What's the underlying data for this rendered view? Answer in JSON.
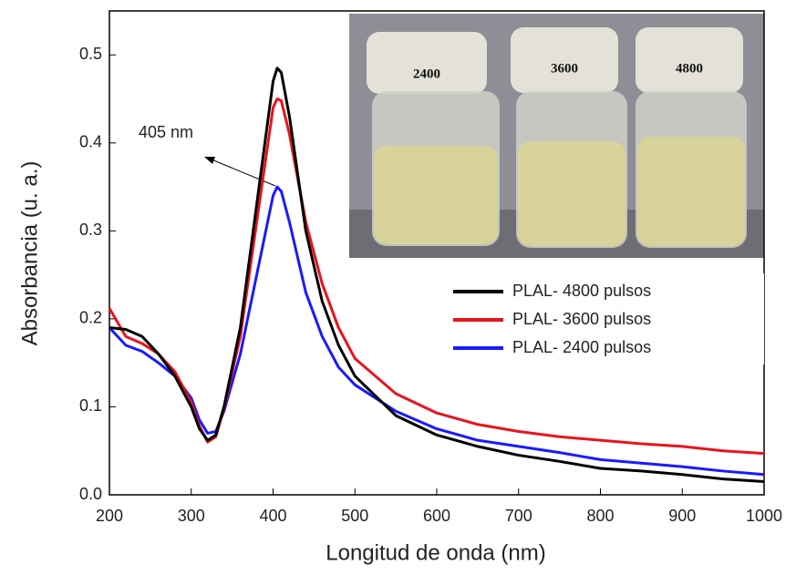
{
  "chart_data": {
    "type": "line",
    "x_label": "Longitud de onda (nm)",
    "y_label": "Absorbancia (u. a.)",
    "annotation": "405 nm",
    "inset_labels": [
      "2400",
      "3600",
      "4800"
    ],
    "x": [
      200,
      220,
      240,
      260,
      280,
      300,
      310,
      320,
      330,
      340,
      360,
      380,
      400,
      405,
      410,
      420,
      440,
      460,
      480,
      500,
      550,
      600,
      650,
      700,
      750,
      800,
      850,
      900,
      950,
      1000
    ],
    "series": [
      {
        "name": "PLAL- 4800 pulsos",
        "color": "#000000",
        "values": [
          0.19,
          0.188,
          0.18,
          0.16,
          0.135,
          0.1,
          0.075,
          0.062,
          0.068,
          0.1,
          0.19,
          0.33,
          0.47,
          0.485,
          0.48,
          0.43,
          0.3,
          0.22,
          0.17,
          0.135,
          0.09,
          0.068,
          0.055,
          0.045,
          0.038,
          0.03,
          0.027,
          0.023,
          0.018,
          0.015
        ]
      },
      {
        "name": "PLAL- 3600 pulsos",
        "color": "#e8141c",
        "values": [
          0.212,
          0.18,
          0.172,
          0.16,
          0.14,
          0.105,
          0.078,
          0.06,
          0.066,
          0.098,
          0.18,
          0.31,
          0.44,
          0.45,
          0.448,
          0.41,
          0.31,
          0.24,
          0.19,
          0.155,
          0.115,
          0.093,
          0.08,
          0.072,
          0.066,
          0.062,
          0.058,
          0.055,
          0.05,
          0.047
        ]
      },
      {
        "name": "PLAL- 2400 pulsos",
        "color": "#1a1aff",
        "values": [
          0.19,
          0.17,
          0.163,
          0.15,
          0.135,
          0.11,
          0.085,
          0.07,
          0.072,
          0.095,
          0.16,
          0.25,
          0.34,
          0.35,
          0.345,
          0.31,
          0.23,
          0.18,
          0.145,
          0.125,
          0.095,
          0.075,
          0.062,
          0.055,
          0.048,
          0.04,
          0.036,
          0.032,
          0.027,
          0.023
        ]
      }
    ],
    "xlim": [
      200,
      1000
    ],
    "xticks": [
      200,
      300,
      400,
      500,
      600,
      700,
      800,
      900,
      1000
    ],
    "ylim": [
      0,
      0.55
    ],
    "yticks": [
      {
        "value": 0,
        "label": "0.0"
      },
      0.1,
      0.2,
      0.3,
      0.4,
      0.5
    ],
    "grid": false
  }
}
